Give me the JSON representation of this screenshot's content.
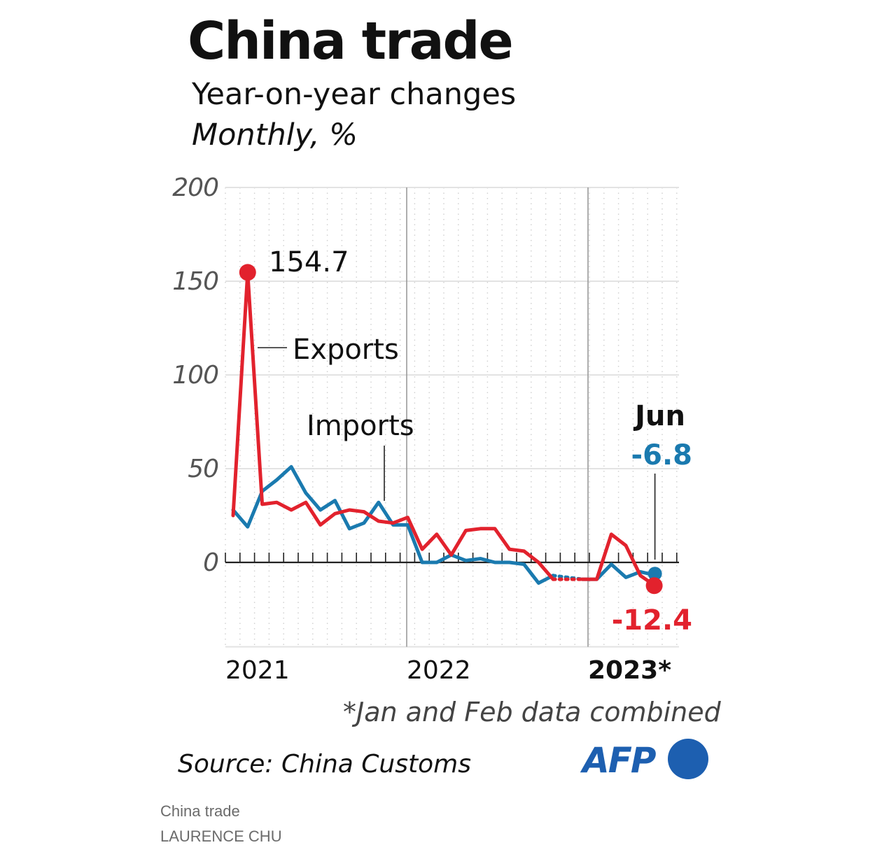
{
  "header": {
    "title": "China trade",
    "subtitle": "Year-on-year changes",
    "units": "Monthly, %"
  },
  "chart_data": {
    "type": "line",
    "ylim": [
      -45,
      200
    ],
    "yticks": [
      {
        "value": 200,
        "label": "200"
      },
      {
        "value": 150,
        "label": "150"
      },
      {
        "value": 100,
        "label": "100"
      },
      {
        "value": 50,
        "label": "50"
      },
      {
        "value": 0,
        "label": "0"
      }
    ],
    "x_labels": [
      {
        "label": "2021",
        "bold": false
      },
      {
        "label": "2022",
        "bold": false
      },
      {
        "label": "2023*",
        "bold": true
      }
    ],
    "categories": [
      "2021-Jan",
      "2021-Feb",
      "2021-Mar",
      "2021-Apr",
      "2021-May",
      "2021-Jun",
      "2021-Jul",
      "2021-Aug",
      "2021-Sep",
      "2021-Oct",
      "2021-Nov",
      "2021-Dec",
      "2022-Jan",
      "2022-Feb",
      "2022-Mar",
      "2022-Apr",
      "2022-May",
      "2022-Jun",
      "2022-Jul",
      "2022-Aug",
      "2022-Sep",
      "2022-Oct",
      "2022-Nov",
      "2022-Dec",
      "2023-Jan",
      "2023-Feb",
      "2023-Mar",
      "2023-Apr",
      "2023-May",
      "2023-Jun"
    ],
    "series": [
      {
        "name": "Exports",
        "color": "#e2222d",
        "values": [
          25,
          154.7,
          31,
          32,
          28,
          32,
          20,
          26,
          28,
          27,
          22,
          21,
          24,
          7,
          15,
          4,
          17,
          18,
          18,
          7,
          6,
          0,
          -9,
          -9,
          -9,
          -9,
          15,
          9,
          -7,
          -12.4
        ]
      },
      {
        "name": "Imports",
        "color": "#1a7aaf",
        "values": [
          28,
          19,
          38,
          44,
          51,
          37,
          28,
          33,
          18,
          21,
          32,
          20,
          20,
          0,
          0,
          4,
          1,
          2,
          0,
          0,
          -1,
          -11,
          -7,
          -8,
          -9,
          -9,
          -1,
          -8,
          -5,
          -6.8
        ]
      }
    ],
    "dotted_segment": {
      "from_index": 22,
      "to_index": 24
    },
    "annotations": {
      "peak_value": "154.7",
      "exports_label": "Exports",
      "imports_label": "Imports",
      "month_label": "Jun",
      "imports_last": "-6.8",
      "exports_last": "-12.4"
    }
  },
  "footnote": "*Jan and Feb data combined",
  "source": "Source: China Customs",
  "logo": {
    "text": "AFP",
    "color": "#1d5fb0"
  },
  "caption": {
    "title": "China trade",
    "author": "LAURENCE CHU"
  }
}
